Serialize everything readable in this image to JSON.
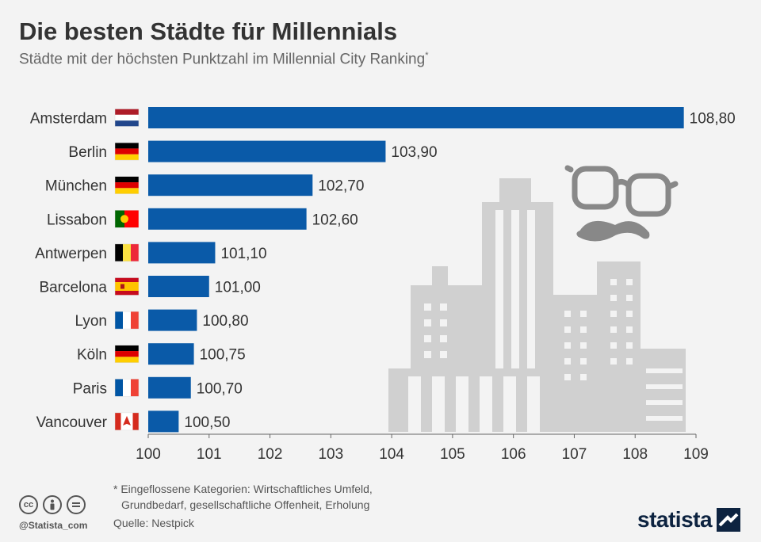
{
  "header": {
    "title": "Die besten Städte für Millennials",
    "subtitle": "Städte mit der höchsten Punktzahl im Millennial City Ranking",
    "subtitle_mark": "*"
  },
  "chart_data": {
    "type": "bar",
    "orientation": "horizontal",
    "title": "Die besten Städte für Millennials",
    "subtitle": "Städte mit der höchsten Punktzahl im Millennial City Ranking*",
    "categories": [
      "Amsterdam",
      "Berlin",
      "München",
      "Lissabon",
      "Antwerpen",
      "Barcelona",
      "Lyon",
      "Köln",
      "Paris",
      "Vancouver"
    ],
    "values": [
      108.8,
      103.9,
      102.7,
      102.6,
      101.1,
      101.0,
      100.8,
      100.75,
      100.7,
      100.5
    ],
    "value_labels": [
      "108,80",
      "103,90",
      "102,70",
      "102,60",
      "101,10",
      "101,00",
      "100,80",
      "100,75",
      "100,70",
      "100,50"
    ],
    "flags": [
      "nl",
      "de",
      "de",
      "pt",
      "be",
      "es",
      "fr",
      "de",
      "fr",
      "ca"
    ],
    "xlim": [
      100,
      109
    ],
    "x_ticks": [
      "100",
      "101",
      "102",
      "103",
      "104",
      "105",
      "106",
      "107",
      "108",
      "109"
    ],
    "grid": false,
    "bar_color": "#0a5aa8"
  },
  "footer": {
    "footnote_line1": "* Eingeflossene Kategorien: Wirtschaftliches Umfeld,",
    "footnote_line2": "Grundbedarf, gesellschaftliche Offenheit, Erholung",
    "source": "Quelle: Nestpick",
    "handle": "@Statista_com",
    "cc_icons": [
      "cc",
      "by",
      "nd"
    ],
    "brand": "statista"
  }
}
